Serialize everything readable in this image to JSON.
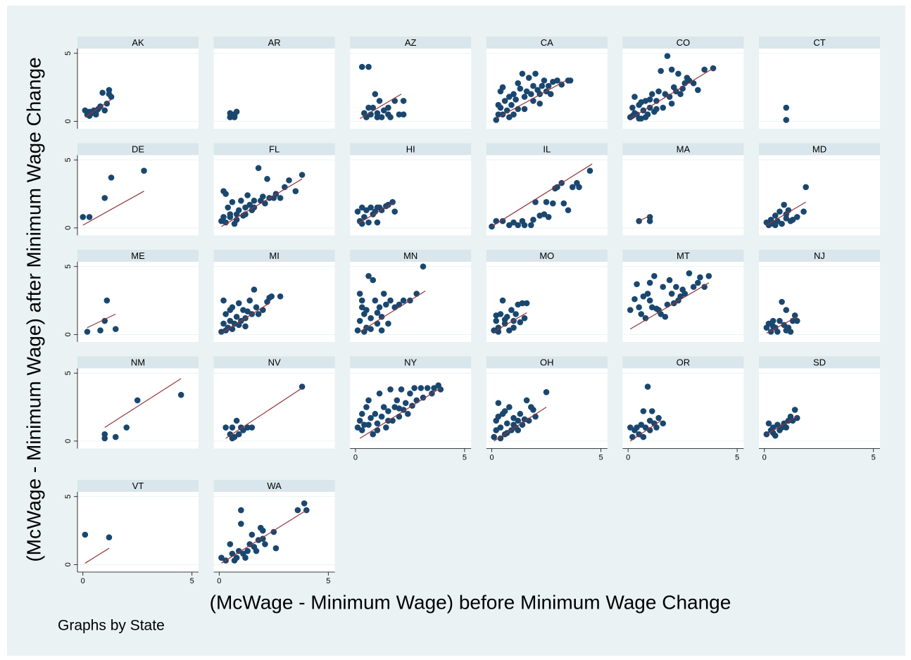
{
  "ylabel": "(McWage - Minimum Wage) after Minimum Wage Change",
  "xlabel": "(McWage - Minimum Wage) before Minimum Wage Change",
  "note": "Graphs by State",
  "axes": {
    "xlim": [
      -0.25,
      5.3
    ],
    "ylim": [
      -0.55,
      5.35
    ],
    "xticks": [
      0,
      5
    ],
    "yticks": [
      0,
      5
    ],
    "grid": true,
    "point_color": "#1a476f",
    "fit_color": "#90353b"
  },
  "chart_data": [
    {
      "type": "scatter",
      "title": "AK",
      "x": [
        0.1,
        0.2,
        0.3,
        0.4,
        0.5,
        0.6,
        0.7,
        0.8,
        0.9,
        1.0,
        1.1,
        1.2,
        1.3,
        1.2,
        0.3,
        0.6
      ],
      "values": [
        0.8,
        0.5,
        0.7,
        0.6,
        0.8,
        0.5,
        0.9,
        1.1,
        2.1,
        0.8,
        1.3,
        2.3,
        1.8,
        2.0,
        0.4,
        0.7
      ],
      "fit_x": [
        0.1,
        1.3
      ],
      "fit_values": [
        0.3,
        1.6
      ]
    },
    {
      "type": "scatter",
      "title": "AR",
      "x": [
        0.5,
        0.5,
        0.7,
        0.8,
        0.7,
        0.6
      ],
      "values": [
        0.3,
        0.6,
        0.4,
        0.7,
        0.3,
        0.5
      ]
    },
    {
      "type": "scatter",
      "title": "AZ",
      "x": [
        0.3,
        0.6,
        0.5,
        0.7,
        0.8,
        0.9,
        1.0,
        1.1,
        1.2,
        1.3,
        1.5,
        1.6,
        1.8,
        2.0,
        2.2,
        2.2,
        0.4,
        1.5,
        0.6,
        1.0
      ],
      "values": [
        4.0,
        4.0,
        0.3,
        0.5,
        1.0,
        2.0,
        0.6,
        1.5,
        0.3,
        0.8,
        1.0,
        0.3,
        1.5,
        0.5,
        1.5,
        0.5,
        0.6,
        0.5,
        1.0,
        0.3
      ],
      "fit_x": [
        0.2,
        2.1
      ],
      "fit_values": [
        0.2,
        2.0
      ]
    },
    {
      "type": "scatter",
      "title": "CA",
      "x": [
        0.2,
        0.3,
        0.4,
        0.5,
        0.4,
        0.6,
        0.7,
        0.8,
        0.9,
        1.0,
        1.1,
        1.2,
        1.3,
        1.4,
        1.5,
        1.6,
        1.7,
        1.8,
        1.9,
        2.0,
        2.1,
        2.2,
        2.3,
        2.4,
        2.5,
        2.6,
        2.7,
        2.8,
        3.0,
        3.2,
        3.5,
        3.6,
        0.5,
        0.8,
        1.2,
        1.9,
        0.3,
        1.0,
        2.2,
        1.5
      ],
      "values": [
        0.1,
        0.5,
        1.0,
        2.5,
        2.2,
        1.5,
        0.8,
        0.3,
        1.2,
        2.0,
        1.6,
        0.9,
        2.4,
        3.5,
        1.8,
        2.2,
        3.2,
        2.0,
        1.5,
        3.5,
        2.3,
        2.0,
        2.6,
        3.0,
        2.2,
        2.6,
        2.0,
        2.9,
        3.0,
        2.7,
        3.0,
        3.0,
        0.5,
        1.8,
        2.8,
        2.6,
        1.2,
        0.5,
        1.3,
        0.9
      ],
      "fit_x": [
        0.2,
        3.4
      ],
      "fit_values": [
        0.2,
        3.0
      ]
    },
    {
      "type": "scatter",
      "title": "CO",
      "x": [
        0.1,
        0.2,
        0.3,
        0.4,
        0.5,
        0.6,
        0.7,
        0.8,
        0.9,
        1.0,
        1.1,
        1.2,
        1.3,
        1.4,
        1.5,
        1.6,
        1.7,
        1.8,
        1.9,
        2.0,
        2.1,
        2.2,
        2.3,
        2.4,
        2.5,
        2.6,
        2.7,
        2.8,
        3.0,
        3.2,
        3.5,
        3.9,
        0.3,
        0.5,
        0.8,
        1.0,
        1.3,
        2.0,
        0.2,
        0.6
      ],
      "values": [
        0.3,
        1.0,
        1.8,
        0.5,
        1.2,
        0.2,
        0.8,
        1.5,
        0.5,
        1.0,
        2.0,
        0.7,
        1.5,
        2.2,
        3.7,
        1.0,
        2.0,
        4.8,
        1.8,
        3.8,
        2.5,
        2.2,
        3.5,
        2.0,
        2.4,
        2.8,
        3.2,
        3.0,
        2.8,
        2.3,
        3.8,
        3.9,
        0.6,
        0.2,
        0.3,
        1.6,
        0.9,
        1.3,
        0.4,
        1.4
      ],
      "fit_x": [
        0.1,
        3.9
      ],
      "fit_values": [
        0.2,
        3.9
      ]
    },
    {
      "type": "scatter",
      "title": "CT",
      "x": [
        1.0,
        1.0
      ],
      "values": [
        1.0,
        0.1
      ]
    },
    {
      "type": "scatter",
      "title": "DE",
      "x": [
        0.0,
        0.3,
        1.0,
        1.3,
        2.8
      ],
      "values": [
        0.8,
        0.8,
        2.2,
        3.7,
        4.2
      ],
      "fit_x": [
        0.0,
        2.8
      ],
      "fit_values": [
        0.2,
        2.7
      ]
    },
    {
      "type": "scatter",
      "title": "FL",
      "x": [
        0.1,
        0.2,
        0.3,
        0.4,
        0.5,
        0.6,
        0.7,
        0.8,
        0.9,
        1.0,
        1.1,
        1.2,
        1.3,
        1.4,
        1.5,
        1.6,
        1.8,
        1.9,
        2.0,
        2.1,
        2.2,
        2.3,
        2.5,
        2.6,
        2.8,
        3.0,
        3.2,
        3.5,
        3.8,
        0.3,
        0.5,
        0.8,
        1.2,
        0.2,
        1.6
      ],
      "values": [
        0.5,
        2.7,
        2.5,
        1.5,
        0.8,
        1.9,
        0.3,
        1.0,
        1.3,
        2.0,
        0.9,
        1.5,
        2.4,
        1.7,
        1.3,
        2.0,
        4.4,
        2.0,
        2.3,
        1.8,
        3.6,
        2.2,
        2.2,
        2.5,
        2.2,
        3.0,
        3.5,
        2.7,
        3.9,
        0.4,
        1.0,
        0.6,
        1.0,
        0.8,
        1.5
      ],
      "fit_x": [
        0.1,
        3.8
      ],
      "fit_values": [
        0.1,
        3.6
      ]
    },
    {
      "type": "scatter",
      "title": "HI",
      "x": [
        0.1,
        0.2,
        0.3,
        0.4,
        0.5,
        0.6,
        0.7,
        0.8,
        0.9,
        1.0,
        1.1,
        1.2,
        1.4,
        1.5,
        1.7,
        1.8,
        0.3,
        1.0
      ],
      "values": [
        1.2,
        0.5,
        1.5,
        0.8,
        1.3,
        0.4,
        1.5,
        1.0,
        1.2,
        0.4,
        1.5,
        1.3,
        1.6,
        1.7,
        1.9,
        1.2,
        0.3,
        1.5
      ],
      "fit_x": [
        0.1,
        1.8
      ],
      "fit_values": [
        0.3,
        1.9
      ]
    },
    {
      "type": "scatter",
      "title": "IL",
      "x": [
        0.0,
        0.2,
        0.5,
        0.8,
        1.0,
        1.2,
        1.4,
        1.5,
        1.8,
        1.9,
        2.0,
        2.2,
        2.4,
        2.5,
        2.8,
        2.9,
        3.0,
        3.2,
        3.5,
        3.7,
        3.9,
        4.0,
        4.5,
        3.3,
        2.6
      ],
      "values": [
        0.1,
        0.5,
        0.5,
        0.2,
        0.4,
        0.2,
        0.5,
        0.2,
        0.2,
        0.6,
        1.9,
        0.9,
        1.0,
        1.9,
        1.8,
        2.9,
        3.0,
        3.3,
        1.3,
        3.0,
        3.3,
        3.0,
        4.2,
        1.8,
        0.8
      ],
      "fit_x": [
        0.0,
        4.6
      ],
      "fit_values": [
        0.1,
        4.7
      ]
    },
    {
      "type": "scatter",
      "title": "MA",
      "x": [
        0.5,
        1.0,
        1.0
      ],
      "values": [
        0.5,
        0.8,
        0.5
      ],
      "fit_x": [
        0.5,
        1.0
      ],
      "fit_values": [
        0.5,
        0.9
      ]
    },
    {
      "type": "scatter",
      "title": "MD",
      "x": [
        0.1,
        0.2,
        0.3,
        0.4,
        0.5,
        0.6,
        0.7,
        0.8,
        0.9,
        1.0,
        1.1,
        1.2,
        1.3,
        1.5,
        1.8,
        1.9,
        0.5,
        1.0
      ],
      "values": [
        0.4,
        0.2,
        0.6,
        0.3,
        0.9,
        0.5,
        1.2,
        0.3,
        1.7,
        0.7,
        1.3,
        0.5,
        0.6,
        0.8,
        1.2,
        3.0,
        0.2,
        1.0
      ],
      "fit_x": [
        0.1,
        1.9
      ],
      "fit_values": [
        0.2,
        1.9
      ]
    },
    {
      "type": "scatter",
      "title": "ME",
      "x": [
        0.2,
        1.1,
        1.0,
        0.8,
        1.5
      ],
      "values": [
        0.2,
        2.5,
        1.0,
        0.3,
        0.4
      ],
      "fit_x": [
        0.2,
        1.5
      ],
      "fit_values": [
        0.5,
        1.5
      ]
    },
    {
      "type": "scatter",
      "title": "MI",
      "x": [
        0.1,
        0.2,
        0.3,
        0.4,
        0.5,
        0.6,
        0.7,
        0.8,
        0.9,
        1.0,
        1.1,
        1.2,
        1.3,
        1.4,
        1.5,
        1.6,
        1.7,
        1.8,
        2.0,
        2.2,
        2.3,
        2.4,
        2.8,
        0.3,
        0.6,
        0.9,
        1.2,
        0.2,
        0.5
      ],
      "values": [
        0.2,
        2.5,
        1.5,
        0.5,
        1.0,
        2.0,
        0.8,
        1.3,
        2.3,
        1.0,
        1.8,
        1.2,
        1.7,
        2.5,
        1.5,
        3.3,
        2.0,
        1.5,
        1.8,
        2.4,
        2.7,
        2.8,
        2.8,
        0.3,
        0.4,
        0.7,
        0.6,
        0.8,
        1.8
      ],
      "fit_x": [
        0.1,
        2.3
      ],
      "fit_values": [
        0.1,
        2.3
      ]
    },
    {
      "type": "scatter",
      "title": "MN",
      "x": [
        0.1,
        0.2,
        0.3,
        0.4,
        0.5,
        0.6,
        0.7,
        0.8,
        0.9,
        1.0,
        1.1,
        1.2,
        1.3,
        1.4,
        1.5,
        1.6,
        1.8,
        2.0,
        2.2,
        2.5,
        2.8,
        3.1,
        0.2,
        0.4,
        0.7,
        1.0,
        0.3,
        1.2,
        0.5
      ],
      "values": [
        0.3,
        3.0,
        2.0,
        1.5,
        0.5,
        4.3,
        1.2,
        4.0,
        2.5,
        0.8,
        2.0,
        1.3,
        3.0,
        2.2,
        0.8,
        2.5,
        2.0,
        2.2,
        2.5,
        2.5,
        3.0,
        5.0,
        1.0,
        0.2,
        0.4,
        1.6,
        2.5,
        0.3,
        1.8
      ],
      "fit_x": [
        0.2,
        3.2
      ],
      "fit_values": [
        0.2,
        3.2
      ]
    },
    {
      "type": "scatter",
      "title": "MO",
      "x": [
        0.1,
        0.2,
        0.3,
        0.4,
        0.5,
        0.6,
        0.7,
        0.8,
        0.9,
        1.0,
        1.1,
        1.2,
        1.3,
        1.4,
        1.5,
        1.6,
        0.3,
        0.6,
        1.0,
        0.2
      ],
      "values": [
        0.3,
        1.0,
        0.5,
        1.5,
        2.5,
        0.8,
        1.3,
        0.3,
        1.8,
        1.0,
        1.5,
        2.2,
        0.9,
        2.3,
        1.2,
        2.3,
        0.2,
        1.1,
        0.5,
        1.4
      ],
      "fit_x": [
        0.1,
        1.6
      ],
      "fit_values": [
        0.2,
        1.6
      ]
    },
    {
      "type": "scatter",
      "title": "MT",
      "x": [
        0.1,
        0.3,
        0.4,
        0.5,
        0.6,
        0.7,
        0.8,
        0.9,
        1.0,
        1.1,
        1.2,
        1.3,
        1.4,
        1.5,
        1.6,
        1.7,
        1.8,
        1.9,
        2.0,
        2.1,
        2.3,
        2.4,
        2.5,
        2.6,
        2.8,
        3.0,
        3.2,
        3.3,
        3.5,
        3.7,
        2.2,
        1.0
      ],
      "values": [
        1.8,
        2.6,
        3.7,
        2.0,
        1.5,
        2.8,
        1.2,
        3.0,
        3.8,
        2.0,
        4.3,
        1.9,
        1.8,
        1.5,
        3.5,
        1.3,
        2.2,
        4.0,
        3.0,
        2.3,
        2.5,
        2.8,
        3.3,
        3.0,
        4.5,
        3.5,
        3.8,
        4.2,
        3.5,
        4.3,
        3.5,
        2.5
      ],
      "fit_x": [
        0.1,
        3.7
      ],
      "fit_values": [
        0.4,
        3.8
      ]
    },
    {
      "type": "scatter",
      "title": "NJ",
      "x": [
        0.1,
        0.2,
        0.3,
        0.4,
        0.5,
        0.6,
        0.7,
        0.8,
        0.9,
        1.0,
        1.1,
        1.2,
        1.3,
        1.4,
        1.5,
        0.4,
        1.0
      ],
      "values": [
        0.5,
        0.8,
        0.2,
        1.0,
        0.5,
        0.2,
        1.0,
        2.4,
        0.7,
        1.8,
        0.5,
        0.2,
        1.0,
        1.4,
        1.0,
        0.6,
        0.3
      ],
      "fit_x": [
        0.1,
        1.5
      ],
      "fit_values": [
        0.1,
        1.3
      ]
    },
    {
      "type": "scatter",
      "title": "NM",
      "x": [
        1.0,
        1.0,
        1.5,
        2.0,
        2.5,
        4.5
      ],
      "values": [
        0.2,
        0.5,
        0.3,
        1.0,
        3.0,
        3.4
      ],
      "fit_x": [
        1.0,
        4.5
      ],
      "fit_values": [
        1.0,
        4.6
      ]
    },
    {
      "type": "scatter",
      "title": "NV",
      "x": [
        0.3,
        0.5,
        0.6,
        0.7,
        0.8,
        0.9,
        1.0,
        1.1,
        1.3,
        1.5,
        3.8,
        0.6
      ],
      "values": [
        1.0,
        0.5,
        1.0,
        0.3,
        1.5,
        0.5,
        1.0,
        0.8,
        1.0,
        1.0,
        4.0,
        0.2
      ],
      "fit_x": [
        0.3,
        3.8
      ],
      "fit_values": [
        0.2,
        3.9
      ]
    },
    {
      "type": "scatter",
      "title": "NY",
      "x": [
        0.1,
        0.2,
        0.3,
        0.4,
        0.5,
        0.6,
        0.7,
        0.8,
        0.9,
        1.0,
        1.1,
        1.2,
        1.3,
        1.4,
        1.5,
        1.6,
        1.7,
        1.8,
        1.9,
        2.0,
        2.1,
        2.2,
        2.3,
        2.4,
        2.5,
        2.6,
        2.8,
        3.0,
        3.1,
        3.3,
        3.5,
        3.6,
        3.8,
        3.9,
        0.3,
        0.6,
        1.0,
        1.5,
        2.0,
        2.7
      ],
      "values": [
        1.0,
        1.5,
        2.0,
        1.2,
        2.5,
        3.0,
        1.7,
        0.5,
        2.0,
        1.3,
        3.5,
        1.8,
        2.5,
        1.0,
        2.2,
        3.8,
        1.5,
        2.5,
        3.0,
        1.8,
        3.8,
        2.3,
        2.8,
        2.0,
        3.5,
        2.6,
        3.0,
        3.9,
        3.2,
        3.9,
        3.5,
        3.9,
        4.1,
        3.8,
        0.8,
        1.2,
        0.8,
        1.5,
        2.4,
        3.9
      ],
      "fit_x": [
        0.2,
        3.9
      ],
      "fit_values": [
        0.2,
        3.9
      ]
    },
    {
      "type": "scatter",
      "title": "OH",
      "x": [
        0.1,
        0.2,
        0.3,
        0.4,
        0.5,
        0.6,
        0.7,
        0.8,
        0.9,
        1.0,
        1.1,
        1.2,
        1.3,
        1.4,
        1.5,
        1.6,
        1.7,
        1.8,
        1.9,
        2.0,
        2.5,
        0.2,
        0.4,
        0.7,
        1.0,
        0.3,
        0.6,
        1.2
      ],
      "values": [
        0.3,
        1.5,
        2.8,
        1.0,
        2.0,
        0.5,
        1.3,
        2.5,
        0.8,
        1.7,
        1.0,
        1.5,
        2.0,
        1.2,
        1.6,
        3.0,
        1.5,
        2.5,
        2.3,
        1.8,
        3.6,
        0.8,
        0.2,
        0.6,
        1.2,
        1.8,
        2.2,
        0.8
      ],
      "fit_x": [
        0.1,
        2.5
      ],
      "fit_values": [
        0.0,
        2.5
      ]
    },
    {
      "type": "scatter",
      "title": "OR",
      "x": [
        0.1,
        0.2,
        0.3,
        0.4,
        0.5,
        0.6,
        0.7,
        0.8,
        0.9,
        1.0,
        1.1,
        1.2,
        1.3,
        1.4,
        1.6,
        0.7,
        1.0
      ],
      "values": [
        1.0,
        0.3,
        0.8,
        1.0,
        0.5,
        1.2,
        2.2,
        1.0,
        4.0,
        1.5,
        2.2,
        1.3,
        1.0,
        1.7,
        1.3,
        0.3,
        0.8
      ],
      "fit_x": [
        0.1,
        1.5
      ],
      "fit_values": [
        0.0,
        1.5
      ]
    },
    {
      "type": "scatter",
      "title": "SD",
      "x": [
        0.1,
        0.2,
        0.3,
        0.4,
        0.5,
        0.6,
        0.7,
        0.8,
        0.9,
        1.0,
        1.1,
        1.2,
        1.3,
        1.4,
        1.5,
        0.4
      ],
      "values": [
        0.5,
        1.3,
        0.8,
        1.0,
        0.4,
        1.2,
        0.8,
        1.0,
        1.3,
        1.0,
        1.5,
        1.8,
        1.5,
        2.3,
        1.7,
        0.6
      ],
      "fit_x": [
        0.1,
        1.5
      ],
      "fit_values": [
        0.5,
        1.8
      ]
    },
    {
      "type": "scatter",
      "title": "VT",
      "x": [
        0.1,
        1.2
      ],
      "values": [
        2.2,
        2.0
      ],
      "fit_x": [
        0.1,
        1.2
      ],
      "fit_values": [
        0.1,
        1.2
      ]
    },
    {
      "type": "scatter",
      "title": "WA",
      "x": [
        0.1,
        0.3,
        0.5,
        0.6,
        0.7,
        0.8,
        0.9,
        1.0,
        1.0,
        1.1,
        1.2,
        1.3,
        1.4,
        1.5,
        1.6,
        1.7,
        1.8,
        1.9,
        2.0,
        2.1,
        2.5,
        2.6,
        3.6,
        3.9,
        4.0,
        2.0
      ],
      "values": [
        0.5,
        0.3,
        1.5,
        0.8,
        0.3,
        0.5,
        1.0,
        4.0,
        3.0,
        0.8,
        0.5,
        1.0,
        1.5,
        2.2,
        1.3,
        1.0,
        1.8,
        2.7,
        2.5,
        1.5,
        2.4,
        1.2,
        4.0,
        4.5,
        4.0,
        1.9
      ],
      "fit_x": [
        0.1,
        4.0
      ],
      "fit_values": [
        0.1,
        4.0
      ]
    }
  ]
}
